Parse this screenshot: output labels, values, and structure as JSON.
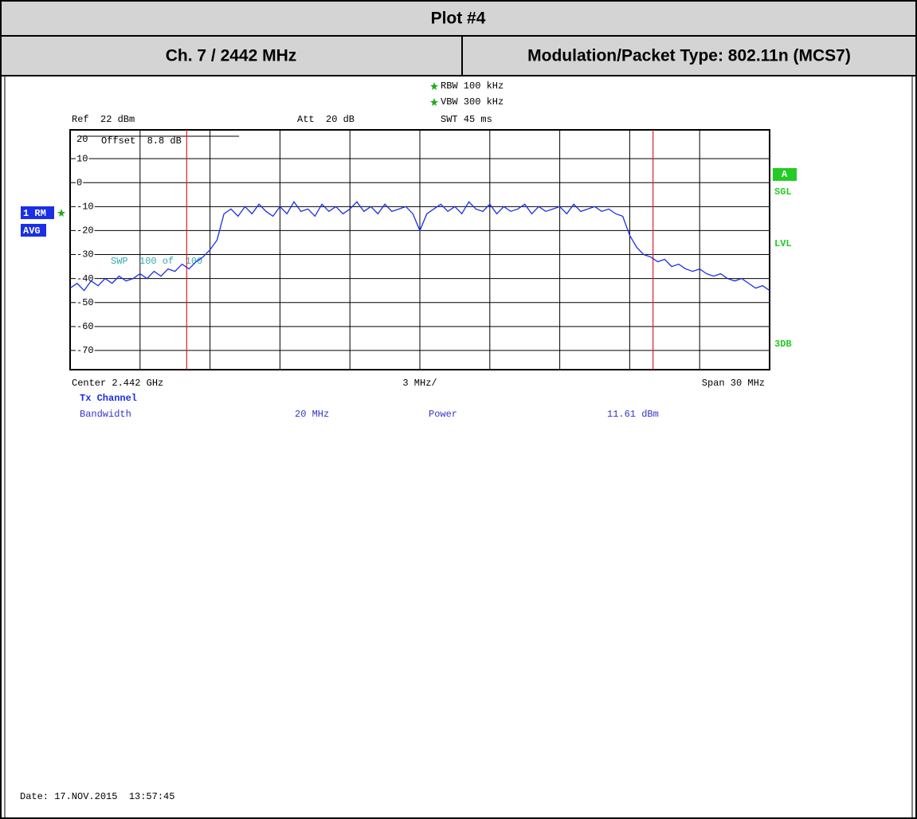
{
  "header": {
    "title": "Plot #4",
    "channel": "Ch. 7 / 2442 MHz",
    "modulation": "Modulation/Packet Type: 802.11n (MCS7)"
  },
  "instrument": {
    "rbw": "RBW 100 kHz",
    "vbw": "VBW 300 kHz",
    "swt": "SWT 45 ms",
    "ref": "Ref  22 dBm",
    "att": "Att  20 dB",
    "offset": "Offset  8.8 dB",
    "sweep": "SWP  100 of  100",
    "trace_label": "1 RM",
    "detector": "AVG",
    "status": [
      "A",
      "SGL",
      "LVL",
      "3DB"
    ]
  },
  "chart_data": {
    "type": "line",
    "color": "#1a2fe6",
    "x": [
      2427,
      2427.3,
      2427.6,
      2427.9,
      2428.2,
      2428.5,
      2428.8,
      2429.1,
      2429.4,
      2429.7,
      2430,
      2430.3,
      2430.6,
      2430.9,
      2431.2,
      2431.5,
      2431.8,
      2432.1,
      2432.4,
      2432.7,
      2433,
      2433.3,
      2433.6,
      2433.9,
      2434.2,
      2434.5,
      2434.8,
      2435.1,
      2435.4,
      2435.7,
      2436,
      2436.3,
      2436.6,
      2436.9,
      2437.2,
      2437.5,
      2437.8,
      2438.1,
      2438.4,
      2438.7,
      2439,
      2439.3,
      2439.6,
      2439.9,
      2440.2,
      2440.5,
      2440.8,
      2441.1,
      2441.4,
      2441.7,
      2442,
      2442.3,
      2442.6,
      2442.9,
      2443.2,
      2443.5,
      2443.8,
      2444.1,
      2444.4,
      2444.7,
      2445,
      2445.3,
      2445.6,
      2445.9,
      2446.2,
      2446.5,
      2446.8,
      2447.1,
      2447.4,
      2447.7,
      2448,
      2448.3,
      2448.6,
      2448.9,
      2449.2,
      2449.5,
      2449.8,
      2450.1,
      2450.4,
      2450.7,
      2451,
      2451.3,
      2451.6,
      2451.9,
      2452.2,
      2452.5,
      2452.8,
      2453.1,
      2453.4,
      2453.7,
      2454,
      2454.3,
      2454.6,
      2454.9,
      2455.2,
      2455.5,
      2455.8,
      2456.1,
      2456.4,
      2456.7,
      2457
    ],
    "values": [
      -44,
      -42,
      -45,
      -41,
      -43,
      -40,
      -42,
      -39,
      -41,
      -40,
      -38,
      -40,
      -37,
      -39,
      -36,
      -37,
      -34,
      -36,
      -33,
      -31,
      -28,
      -24,
      -13,
      -11,
      -14,
      -10,
      -13,
      -9,
      -12,
      -14,
      -10,
      -13,
      -8,
      -12,
      -11,
      -14,
      -9,
      -12,
      -10,
      -13,
      -11,
      -8,
      -12,
      -10,
      -13,
      -9,
      -12,
      -11,
      -10,
      -13,
      -20,
      -13,
      -11,
      -9,
      -12,
      -10,
      -13,
      -8,
      -11,
      -12,
      -9,
      -13,
      -10,
      -12,
      -11,
      -9,
      -13,
      -10,
      -12,
      -11,
      -10,
      -13,
      -9,
      -12,
      -11,
      -10,
      -12,
      -11,
      -13,
      -14,
      -22,
      -27,
      -30,
      -31,
      -33,
      -32,
      -35,
      -34,
      -36,
      -37,
      -36,
      -38,
      -39,
      -38,
      -40,
      -41,
      -40,
      -42,
      -44,
      -43,
      -45
    ],
    "xlim": [
      2427,
      2457
    ],
    "xticks": [
      2427,
      2430,
      2433,
      2436,
      2439,
      2442,
      2445,
      2448,
      2451,
      2454,
      2457
    ],
    "ylim": [
      -78,
      22
    ],
    "yticks": [
      20,
      10,
      0,
      -10,
      -20,
      -30,
      -40,
      -50,
      -60,
      -70
    ],
    "grid": true,
    "markers": [
      2432,
      2452
    ],
    "marker_color": "#e02020",
    "x_labels": {
      "center": "Center 2.442 GHz",
      "division": "3 MHz/",
      "span": "Span 30 MHz"
    }
  },
  "measurement": {
    "heading": "Tx Channel",
    "rows": [
      [
        "Bandwidth",
        "20 MHz",
        "Power",
        "11.61 dBm"
      ]
    ]
  },
  "date": "Date: 17.NOV.2015  13:57:45"
}
